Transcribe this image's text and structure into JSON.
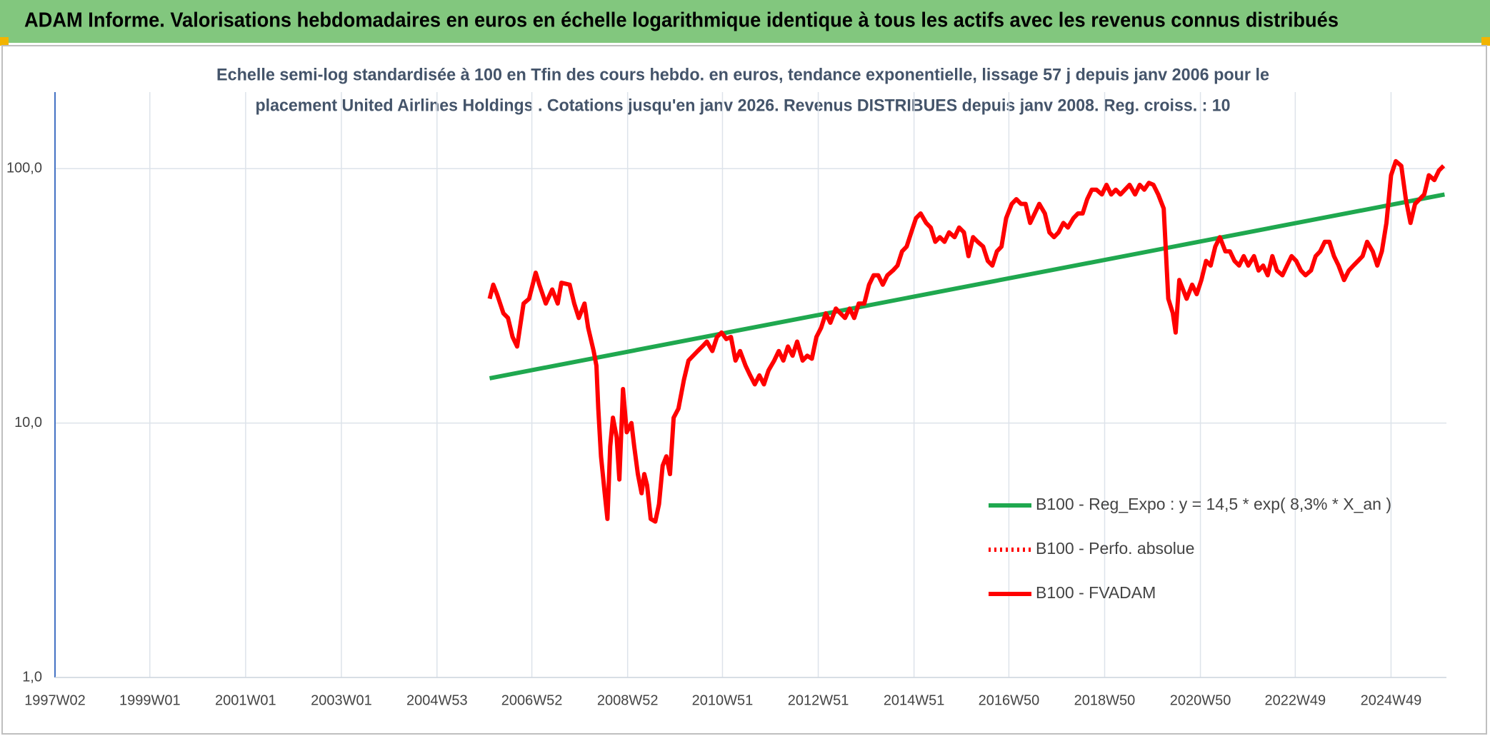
{
  "header": {
    "title": "ADAM Informe. Valorisations hebdomadaires en euros en échelle logarithmique identique à tous les actifs avec les revenus connus distribués"
  },
  "chart_data": {
    "type": "line",
    "subtitle": [
      "Echelle semi-log standardisée à 100 en Tfin des cours hebdo. en euros, tendance exponentielle, lissage 57 j depuis janv 2006 pour le",
      "placement United Airlines Holdings . Cotations jusqu'en janv 2026. Revenus DISTRIBUES depuis janv 2008. Reg. croiss. : 10"
    ],
    "log_y": true,
    "grid": true,
    "legend": "right",
    "ylim": [
      1,
      200
    ],
    "yticks": [
      {
        "value": 1,
        "label": "1,0"
      },
      {
        "value": 10,
        "label": "10,0"
      },
      {
        "value": 100,
        "label": "100,0"
      }
    ],
    "xlim": [
      "1997W02",
      "2026W05"
    ],
    "xticks": [
      "1997W02",
      "1999W01",
      "2001W01",
      "2003W01",
      "2004W53",
      "2006W52",
      "2008W52",
      "2010W51",
      "2012W51",
      "2014W51",
      "2016W50",
      "2018W50",
      "2020W50",
      "2022W49",
      "2024W49"
    ],
    "series": [
      {
        "name": "B100 - Reg_Expo : y = 14,5 * exp( 8,3% *  X_an )",
        "color": "#1fa84f",
        "dash": "solid",
        "x": [
          "2006W06",
          "2026W03"
        ],
        "values": [
          15.0,
          79.2
        ]
      },
      {
        "name": "B100 - Perfo. absolue",
        "color": "#ff0000",
        "dash": "dotted",
        "x": [],
        "values": []
      },
      {
        "name": "B100 - FVADAM",
        "color": "#ff0000",
        "dash": "solid",
        "x": [
          "2006W06",
          "2006W10",
          "2006W14",
          "2006W21",
          "2006W26",
          "2006W31",
          "2006W36",
          "2006W39",
          "2006W43",
          "2006W49",
          "2007W04",
          "2007W08",
          "2007W15",
          "2007W22",
          "2007W28",
          "2007W32",
          "2007W41",
          "2007W46",
          "2007W51",
          "2008W05",
          "2008W09",
          "2008W15",
          "2008W18",
          "2008W20",
          "2008W23",
          "2008W27",
          "2008W30",
          "2008W33",
          "2008W36",
          "2008W40",
          "2008W43",
          "2008W47",
          "2008W51",
          "2009W04",
          "2009W07",
          "2009W11",
          "2009W15",
          "2009W18",
          "2009W21",
          "2009W25",
          "2009W30",
          "2009W34",
          "2009W38",
          "2009W42",
          "2009W46",
          "2009W50",
          "2010W03",
          "2010W09",
          "2010W14",
          "2010W19",
          "2010W24",
          "2010W29",
          "2010W34",
          "2010W40",
          "2010W45",
          "2010W50",
          "2011W03",
          "2011W08",
          "2011W13",
          "2011W18",
          "2011W24",
          "2011W29",
          "2011W34",
          "2011W39",
          "2011W44",
          "2011W49",
          "2012W03",
          "2012W08",
          "2012W13",
          "2012W18",
          "2012W23",
          "2012W28",
          "2012W34",
          "2012W39",
          "2012W44",
          "2012W49",
          "2013W02",
          "2013W07",
          "2013W12",
          "2013W18",
          "2013W23",
          "2013W28",
          "2013W33",
          "2013W38",
          "2013W43",
          "2013W49",
          "2014W02",
          "2014W07",
          "2014W12",
          "2014W17",
          "2014W22",
          "2014W28",
          "2014W33",
          "2014W38",
          "2014W43",
          "2014W48",
          "2015W01",
          "2015W06",
          "2015W12",
          "2015W17",
          "2015W22",
          "2015W27",
          "2015W32",
          "2015W37",
          "2015W43",
          "2015W48",
          "2016W01",
          "2016W06",
          "2016W11",
          "2016W16",
          "2016W22",
          "2016W27",
          "2016W32",
          "2016W37",
          "2016W42",
          "2016W47",
          "2017W01",
          "2017W06",
          "2017W11",
          "2017W16",
          "2017W21",
          "2017W26",
          "2017W31",
          "2017W37",
          "2017W42",
          "2017W47",
          "2017W52",
          "2018W05",
          "2018W10",
          "2018W16",
          "2018W21",
          "2018W26",
          "2018W31",
          "2018W36",
          "2018W41",
          "2018W47",
          "2018W52",
          "2019W05",
          "2019W10",
          "2019W15",
          "2019W20",
          "2019W25",
          "2019W31",
          "2019W36",
          "2019W41",
          "2019W46",
          "2019W51",
          "2020W04",
          "2020W10",
          "2020W15",
          "2020W20",
          "2020W23",
          "2020W27",
          "2020W31",
          "2020W35",
          "2020W41",
          "2020W46",
          "2020W51",
          "2021W04",
          "2021W09",
          "2021W14",
          "2021W19",
          "2021W25",
          "2021W30",
          "2021W35",
          "2021W40",
          "2021W45",
          "2021W50",
          "2022W04",
          "2022W09",
          "2022W14",
          "2022W19",
          "2022W24",
          "2022W29",
          "2022W35",
          "2022W40",
          "2022W45",
          "2022W50",
          "2023W03",
          "2023W08",
          "2023W14",
          "2023W19",
          "2023W24",
          "2023W29",
          "2023W34",
          "2023W39",
          "2023W44",
          "2023W50",
          "2024W03",
          "2024W08",
          "2024W13",
          "2024W18",
          "2024W23",
          "2024W29",
          "2024W34",
          "2024W39",
          "2024W44",
          "2024W49",
          "2025W02",
          "2025W08",
          "2025W13",
          "2025W18",
          "2025W23",
          "2025W28",
          "2025W33",
          "2025W38",
          "2025W44",
          "2025W49",
          "2026W02"
        ],
        "values": [
          30.8,
          35.0,
          32.1,
          27.0,
          25.9,
          21.8,
          20.0,
          23.7,
          29.5,
          30.8,
          39.0,
          35.0,
          29.5,
          33.5,
          29.5,
          35.6,
          35.0,
          29.5,
          25.9,
          29.5,
          23.7,
          19.2,
          16.8,
          11.4,
          7.4,
          5.3,
          4.2,
          8.1,
          10.5,
          8.8,
          6.0,
          13.6,
          9.2,
          10.0,
          8.1,
          6.3,
          5.3,
          6.3,
          5.7,
          4.2,
          4.1,
          4.8,
          6.8,
          7.4,
          6.3,
          10.5,
          11.4,
          14.8,
          17.6,
          18.4,
          19.2,
          20.0,
          20.9,
          19.2,
          21.8,
          22.7,
          21.4,
          21.8,
          17.6,
          19.2,
          16.8,
          15.4,
          14.2,
          15.4,
          14.2,
          16.1,
          17.6,
          19.2,
          17.6,
          20.0,
          18.4,
          20.9,
          17.6,
          18.4,
          17.9,
          21.8,
          23.7,
          27.0,
          24.8,
          28.2,
          27.0,
          25.9,
          28.2,
          25.9,
          29.5,
          29.5,
          35.0,
          38.1,
          38.1,
          35.0,
          38.1,
          39.8,
          41.6,
          47.3,
          49.4,
          56.2,
          63.9,
          66.7,
          61.2,
          58.7,
          51.6,
          53.8,
          51.6,
          56.2,
          53.8,
          58.7,
          56.2,
          45.3,
          53.8,
          51.6,
          49.4,
          43.4,
          41.6,
          47.3,
          49.4,
          63.9,
          72.7,
          75.9,
          72.7,
          72.7,
          61.2,
          66.7,
          72.7,
          66.7,
          56.2,
          53.8,
          56.2,
          61.2,
          58.7,
          63.9,
          66.7,
          66.7,
          75.9,
          82.7,
          82.7,
          79.2,
          86.4,
          79.2,
          82.7,
          79.2,
          82.7,
          86.4,
          79.2,
          86.4,
          82.7,
          87.9,
          86.4,
          79.2,
          69.7,
          30.8,
          27.0,
          22.7,
          36.5,
          33.5,
          30.8,
          35.0,
          32.1,
          36.5,
          43.4,
          41.6,
          49.4,
          53.8,
          47.3,
          47.3,
          43.4,
          41.6,
          45.3,
          41.6,
          45.3,
          39.8,
          41.6,
          38.1,
          45.3,
          39.8,
          38.1,
          41.6,
          45.3,
          43.4,
          39.8,
          38.1,
          39.8,
          45.3,
          47.3,
          51.6,
          51.6,
          45.3,
          41.6,
          36.5,
          39.8,
          41.6,
          43.4,
          45.3,
          51.6,
          47.3,
          41.6,
          47.3,
          61.2,
          94.2,
          107,
          102.6,
          75.9,
          61.2,
          72.7,
          75.9,
          79.2,
          94.2,
          90.2,
          98.3,
          102.6
        ]
      }
    ]
  }
}
